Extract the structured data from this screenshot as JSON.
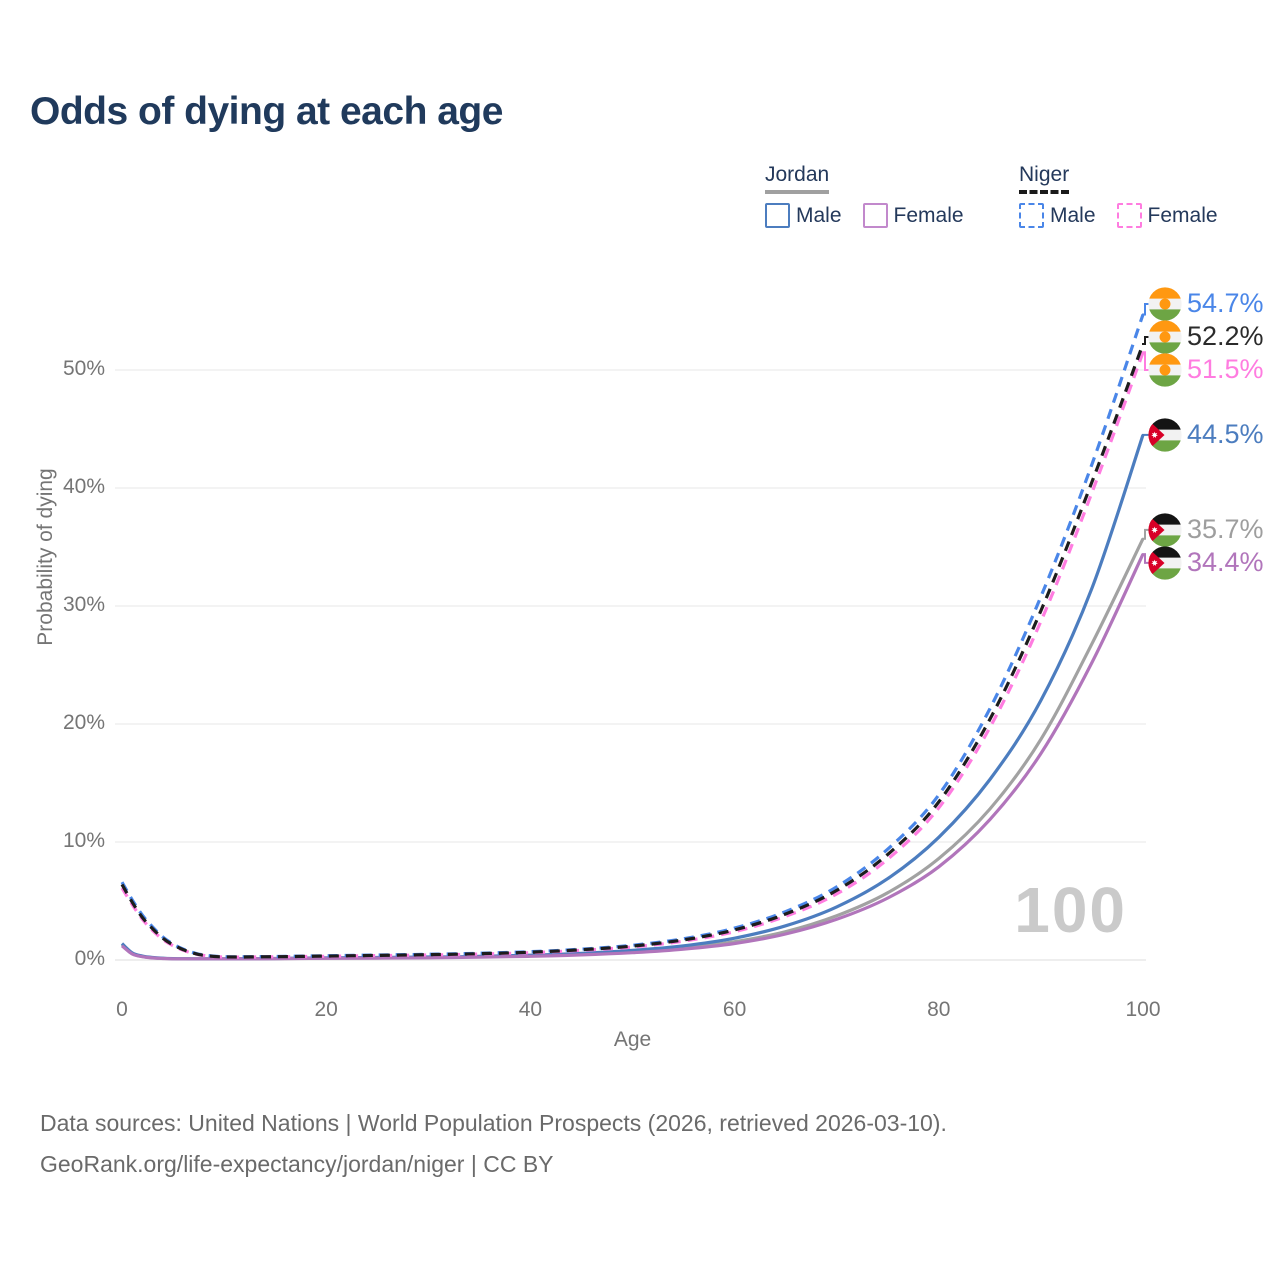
{
  "title": "Odds of dying at each age",
  "watermark_age": "100",
  "legend": {
    "groups": [
      {
        "name": "Jordan",
        "line_style": "solid",
        "underline_color": "#a0a0a0",
        "items": [
          {
            "label": "Male",
            "color": "#4c7dbf"
          },
          {
            "label": "Female",
            "color": "#c289cc"
          }
        ]
      },
      {
        "name": "Niger",
        "line_style": "dashed",
        "underline_color": "#1a1a1a",
        "items": [
          {
            "label": "Male",
            "color": "#4a86e8"
          },
          {
            "label": "Female",
            "color": "#ff7ce0"
          }
        ]
      }
    ]
  },
  "footer": {
    "line1": "Data sources: United Nations | World Population Prospects (2026, retrieved 2026-03-10).",
    "line2": "GeoRank.org/life-expectancy/jordan/niger | CC BY"
  },
  "chart_data": {
    "type": "line",
    "title": "Odds of dying at each age",
    "xlabel": "Age",
    "ylabel": "Probability of dying",
    "grid": "horizontal",
    "xlim": [
      0,
      100
    ],
    "ylim_percent": [
      0,
      57
    ],
    "x_ticks": [
      0,
      20,
      40,
      60,
      80,
      100
    ],
    "y_ticks": [
      {
        "value": 0,
        "label": "0%"
      },
      {
        "value": 10,
        "label": "10%"
      },
      {
        "value": 20,
        "label": "20%"
      },
      {
        "value": 30,
        "label": "30%"
      },
      {
        "value": 40,
        "label": "40%"
      },
      {
        "value": 50,
        "label": "50%"
      }
    ],
    "ages": [
      0,
      1,
      2,
      3,
      4,
      5,
      6,
      7,
      8,
      10,
      15,
      20,
      25,
      30,
      35,
      40,
      45,
      50,
      55,
      60,
      65,
      70,
      75,
      80,
      85,
      90,
      95,
      100
    ],
    "series": [
      {
        "name": "Jordan Both sexes",
        "country": "Jordan",
        "sex": "both",
        "flag": "jordan",
        "dash": "solid",
        "color": "#a2a2a2",
        "end_label": "35.7%",
        "label_color": "#9e9e9e",
        "values_percent": [
          1.3,
          0.55,
          0.3,
          0.19,
          0.14,
          0.11,
          0.1,
          0.09,
          0.09,
          0.09,
          0.12,
          0.16,
          0.18,
          0.21,
          0.27,
          0.35,
          0.48,
          0.69,
          1.02,
          1.55,
          2.4,
          3.75,
          5.7,
          8.6,
          12.8,
          18.7,
          26.8,
          35.7
        ]
      },
      {
        "name": "Jordan Male",
        "country": "Jordan",
        "sex": "male",
        "flag": "jordan",
        "dash": "solid",
        "color": "#4c7dbf",
        "end_label": "44.5%",
        "label_color": "#4c7dbf",
        "values_percent": [
          1.4,
          0.6,
          0.33,
          0.21,
          0.15,
          0.12,
          0.11,
          0.1,
          0.1,
          0.1,
          0.13,
          0.18,
          0.21,
          0.25,
          0.31,
          0.41,
          0.57,
          0.82,
          1.2,
          1.85,
          2.9,
          4.5,
          6.9,
          10.4,
          15.3,
          22.0,
          31.5,
          44.5
        ]
      },
      {
        "name": "Jordan Female",
        "country": "Jordan",
        "sex": "female",
        "flag": "jordan",
        "dash": "solid",
        "color": "#b175bb",
        "end_label": "34.4%",
        "label_color": "#b175bb",
        "values_percent": [
          1.2,
          0.52,
          0.28,
          0.18,
          0.13,
          0.1,
          0.09,
          0.08,
          0.08,
          0.08,
          0.11,
          0.14,
          0.16,
          0.19,
          0.24,
          0.31,
          0.43,
          0.62,
          0.92,
          1.4,
          2.2,
          3.45,
          5.25,
          7.9,
          11.9,
          17.5,
          25.2,
          34.4
        ]
      },
      {
        "name": "Niger Male",
        "country": "Niger",
        "sex": "male",
        "flag": "niger",
        "dash": "dashed",
        "color": "#4a86e8",
        "end_label": "54.7%",
        "label_color": "#4a86e8",
        "values_percent": [
          6.6,
          5.1,
          3.8,
          2.8,
          1.95,
          1.35,
          0.92,
          0.62,
          0.43,
          0.28,
          0.3,
          0.36,
          0.42,
          0.48,
          0.57,
          0.7,
          0.92,
          1.25,
          1.8,
          2.7,
          4.1,
          6.2,
          9.4,
          14.0,
          21.3,
          30.8,
          42.0,
          54.7
        ]
      },
      {
        "name": "Niger Female",
        "country": "Niger",
        "sex": "female",
        "flag": "niger",
        "dash": "dashed",
        "color": "#ff7ce0",
        "end_label": "51.5%",
        "label_color": "#ff7ce0",
        "values_percent": [
          6.1,
          4.7,
          3.45,
          2.5,
          1.75,
          1.2,
          0.82,
          0.55,
          0.38,
          0.25,
          0.27,
          0.31,
          0.37,
          0.42,
          0.5,
          0.62,
          0.82,
          1.1,
          1.6,
          2.4,
          3.7,
          5.6,
          8.55,
          12.9,
          19.7,
          28.7,
          39.6,
          51.5
        ]
      },
      {
        "name": "Niger Both sexes",
        "country": "Niger",
        "sex": "both",
        "flag": "niger",
        "dash": "dashed",
        "color": "#1d1d1d",
        "end_label": "52.2%",
        "label_color": "#2b2b2b",
        "values_percent": [
          6.4,
          4.9,
          3.6,
          2.65,
          1.85,
          1.28,
          0.87,
          0.58,
          0.4,
          0.26,
          0.28,
          0.33,
          0.39,
          0.45,
          0.53,
          0.66,
          0.87,
          1.18,
          1.7,
          2.55,
          3.9,
          5.9,
          8.95,
          13.4,
          20.4,
          29.6,
          40.5,
          52.2
        ]
      }
    ],
    "colors": {
      "grid": "#ececec",
      "axis_text": "#757575",
      "title": "#203a5c",
      "watermark": "#cacaca",
      "niger_flag_orange": "#ff9811",
      "niger_flag_green": "#6da544",
      "jordan_flag_red": "#d80027",
      "jordan_flag_green": "#6da544",
      "jordan_flag_black": "#141414"
    }
  }
}
